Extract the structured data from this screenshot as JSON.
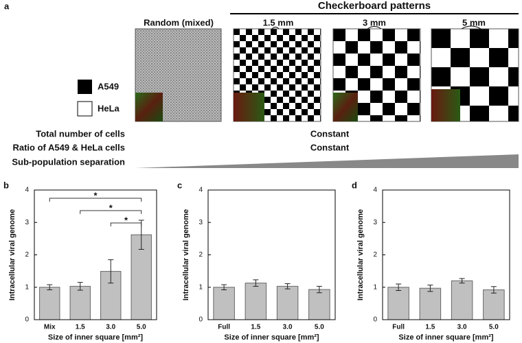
{
  "figure": {
    "panel_a": "a",
    "header": "Checkerboard patterns",
    "pattern_labels": [
      "Random (mixed)",
      "1.5 mm",
      "3 mm",
      "5 mm"
    ],
    "legend": [
      "A549",
      "HeLa"
    ],
    "rows": [
      {
        "label": "Total number of cells",
        "value": "Constant"
      },
      {
        "label": "Ratio of A549 & HeLa cells",
        "value": "Constant"
      },
      {
        "label": "Sub-population separation"
      }
    ]
  },
  "chart_data": [
    {
      "type": "bar",
      "panel": "b",
      "categories": [
        "Mix",
        "1.5",
        "3.0",
        "5.0"
      ],
      "values": [
        1.0,
        1.03,
        1.49,
        2.62
      ],
      "errors": [
        0.08,
        0.12,
        0.36,
        0.45
      ],
      "ylabel": "Intracellular viral genome",
      "xlabel": "Size of inner square [mm²]",
      "ylim": [
        0,
        4
      ],
      "yticks": [
        0,
        1,
        2,
        3,
        4
      ],
      "color": "#c0c0c0",
      "annotations": [
        {
          "text": "*",
          "from": "Mix",
          "to": "5.0"
        },
        {
          "text": "*",
          "from": "1.5",
          "to": "5.0"
        },
        {
          "text": "*",
          "from": "3.0",
          "to": "5.0"
        }
      ]
    },
    {
      "type": "bar",
      "panel": "c",
      "categories": [
        "Full",
        "1.5",
        "3.0",
        "5.0"
      ],
      "values": [
        1.0,
        1.13,
        1.03,
        0.93
      ],
      "errors": [
        0.08,
        0.1,
        0.08,
        0.1
      ],
      "ylabel": "Intracellular viral genome",
      "xlabel": "Size of inner square [mm²]",
      "ylim": [
        0,
        4
      ],
      "yticks": [
        0,
        1,
        2,
        3,
        4
      ],
      "color": "#c0c0c0"
    },
    {
      "type": "bar",
      "panel": "d",
      "categories": [
        "Full",
        "1.5",
        "3.0",
        "5.0"
      ],
      "values": [
        1.0,
        0.97,
        1.2,
        0.92
      ],
      "errors": [
        0.1,
        0.1,
        0.07,
        0.1
      ],
      "ylabel": "Intracellular viral genome",
      "xlabel": "Size of inner square [mm²]",
      "ylim": [
        0,
        4
      ],
      "yticks": [
        0,
        1,
        2,
        3,
        4
      ],
      "color": "#c0c0c0"
    }
  ]
}
